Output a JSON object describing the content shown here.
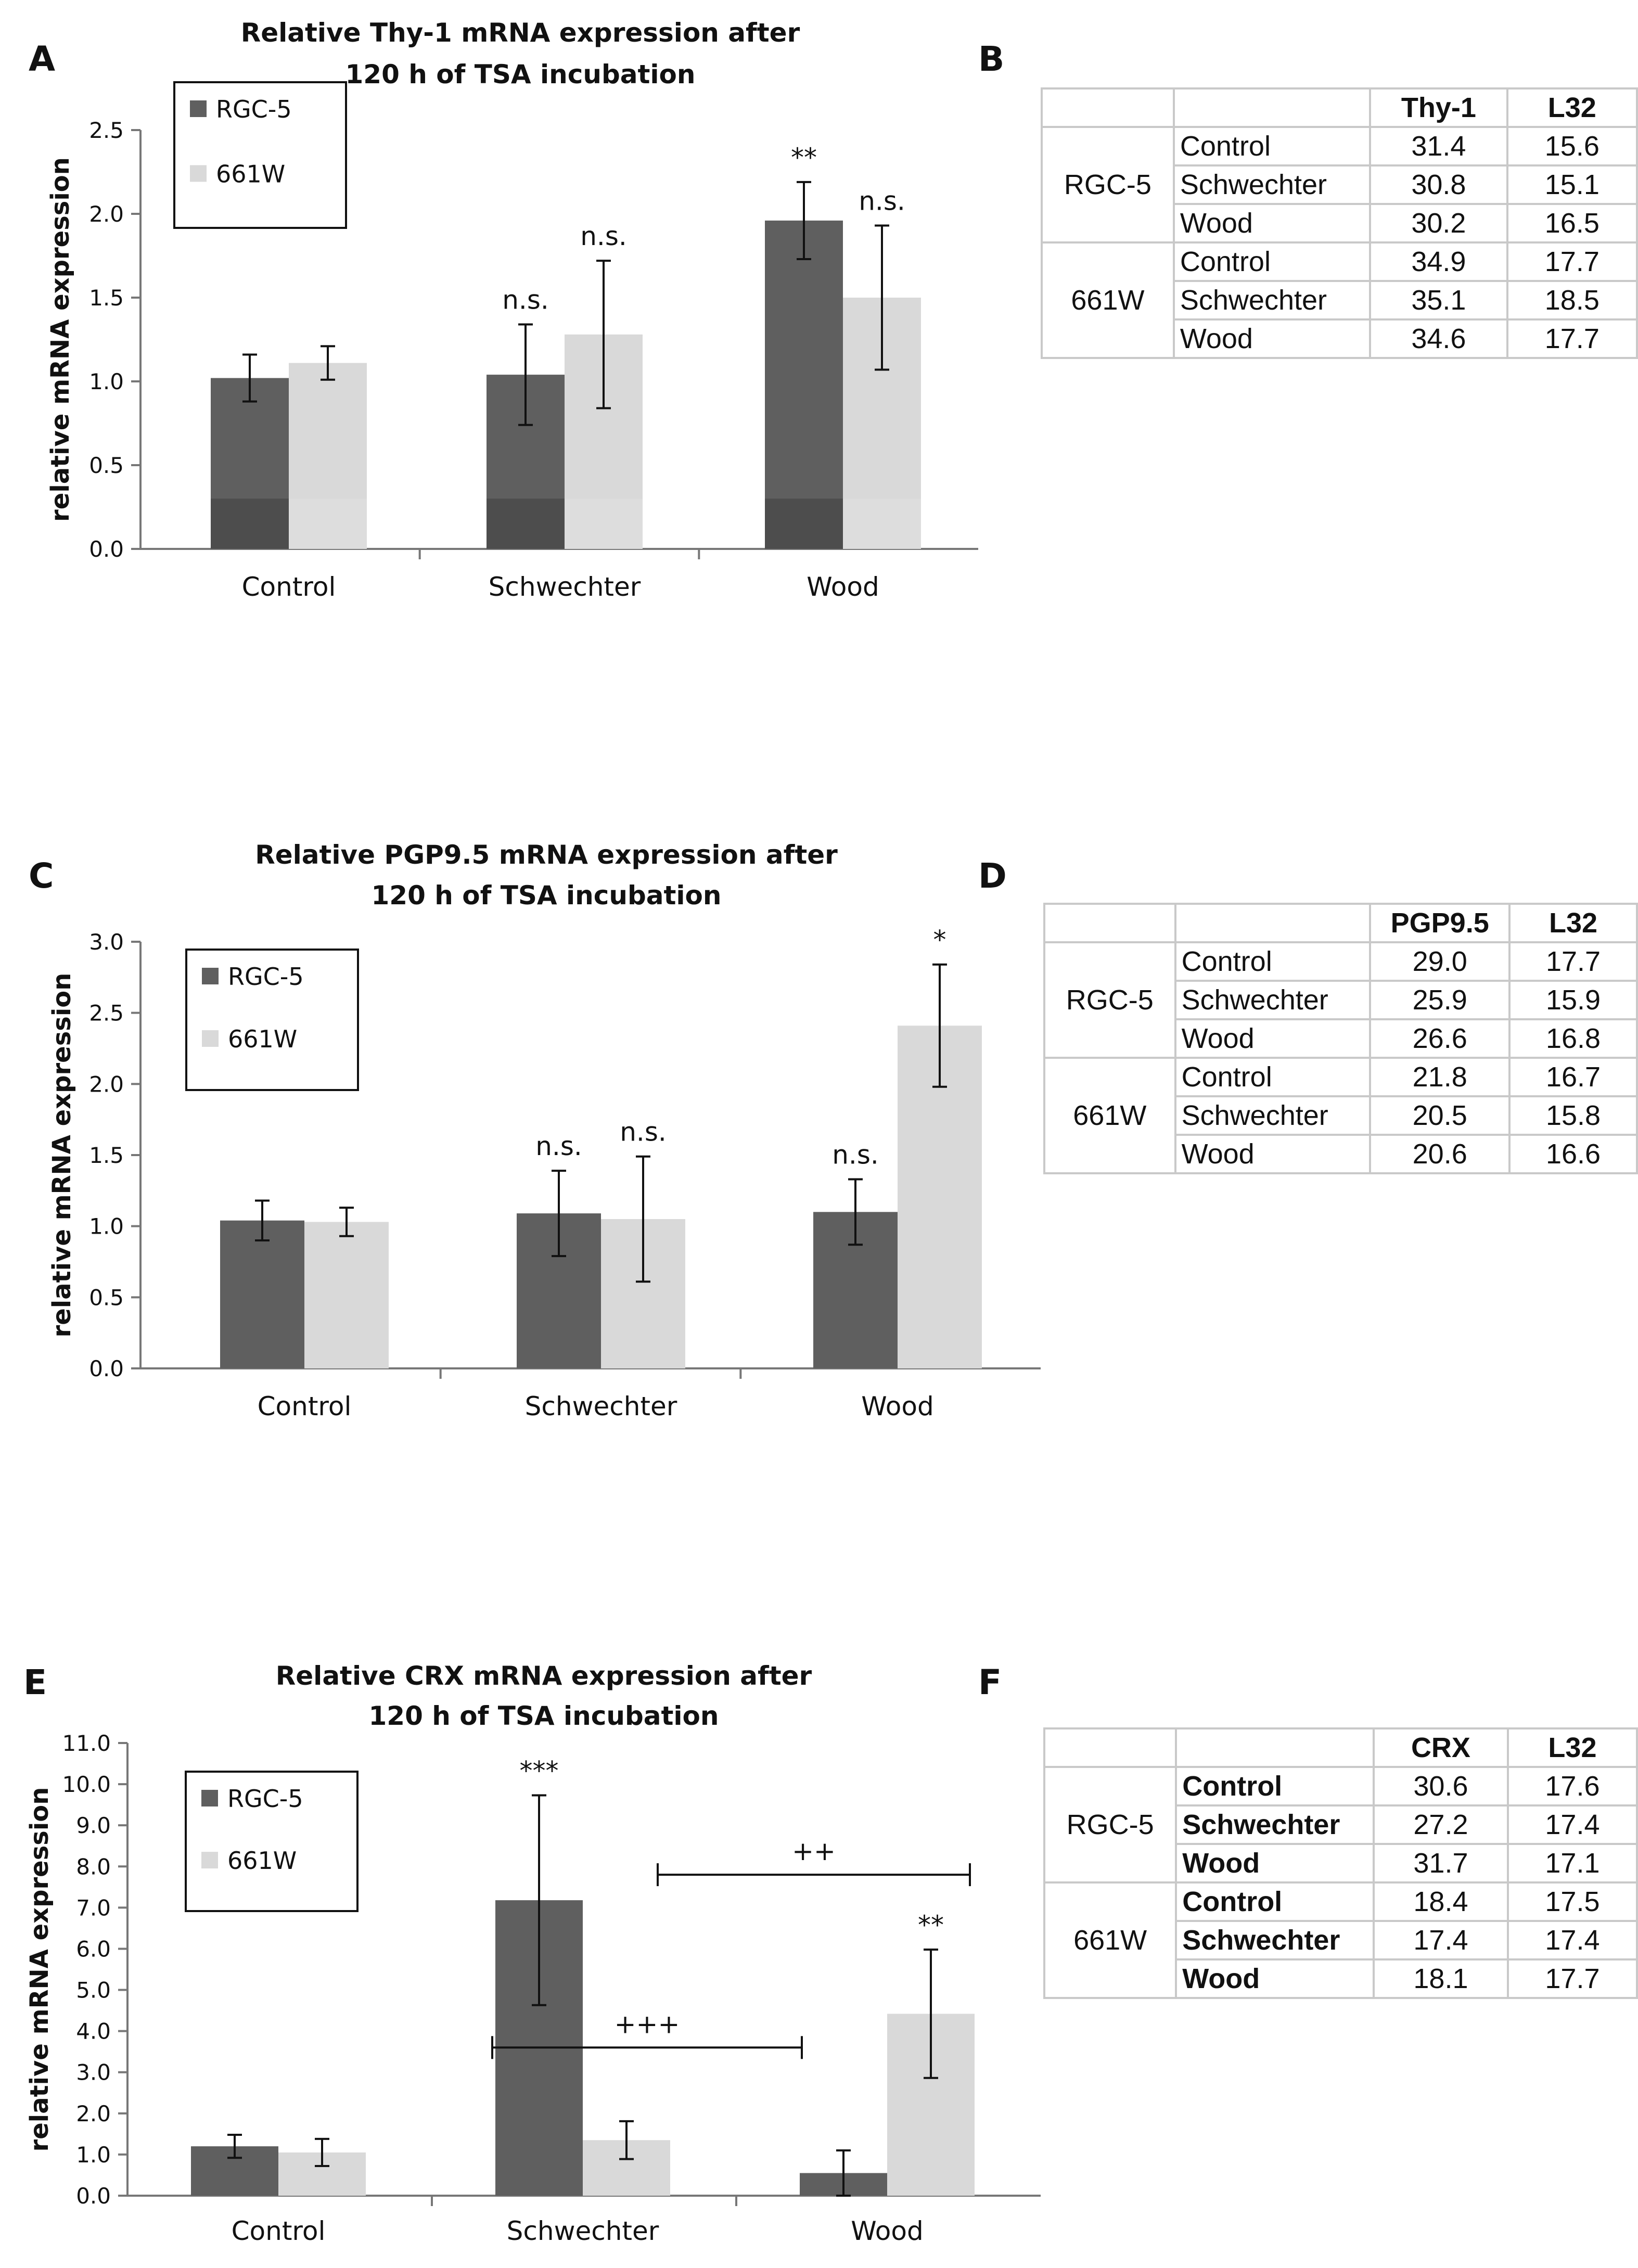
{
  "colors": {
    "rgc5": "#5f5f5f",
    "w661": "#d9d9d9",
    "rgc5_base": "#4d4d4d",
    "w661_base": "#dddddd"
  },
  "series_names": [
    "RGC-5",
    "661W"
  ],
  "chart_data": [
    {
      "letter": "A",
      "type": "bar",
      "title_line1": "Relative Thy-1 mRNA expression after",
      "title_line2": "120 h of TSA incubation",
      "ylabel": "relative mRNA expression",
      "xlabel": "",
      "ylim": [
        0,
        2.5
      ],
      "yticks": [
        0,
        0.5,
        1,
        1.5,
        2,
        2.5
      ],
      "tick_decimals": 1,
      "categories": [
        "Control",
        "Schwechter",
        "Wood"
      ],
      "series": [
        {
          "name": "RGC-5",
          "values": [
            1.02,
            1.04,
            1.96
          ],
          "errors": [
            0.14,
            0.3,
            0.23
          ]
        },
        {
          "name": "661W",
          "values": [
            1.11,
            1.28,
            1.5
          ],
          "errors": [
            0.1,
            0.44,
            0.43
          ]
        }
      ],
      "sig": [
        [
          "",
          "n.s.",
          "**"
        ],
        [
          "",
          "n.s.",
          "n.s."
        ]
      ],
      "brackets": [],
      "legend": "top-left",
      "grid": false
    },
    {
      "letter": "C",
      "type": "bar",
      "title_line1": "Relative PGP9.5 mRNA expression after",
      "title_line2": "120 h of TSA incubation",
      "ylabel": "relative mRNA expression",
      "xlabel": "",
      "ylim": [
        0,
        3.0
      ],
      "yticks": [
        0,
        0.5,
        1,
        1.5,
        2,
        2.5,
        3
      ],
      "tick_decimals": 1,
      "categories": [
        "Control",
        "Schwechter",
        "Wood"
      ],
      "series": [
        {
          "name": "RGC-5",
          "values": [
            1.04,
            1.09,
            1.1
          ],
          "errors": [
            0.14,
            0.3,
            0.23
          ]
        },
        {
          "name": "661W",
          "values": [
            1.03,
            1.05,
            2.41
          ],
          "errors": [
            0.1,
            0.44,
            0.43
          ]
        }
      ],
      "sig": [
        [
          "",
          "n.s.",
          "n.s."
        ],
        [
          "",
          "n.s.",
          "*"
        ]
      ],
      "brackets": [],
      "legend": "top-left",
      "grid": false
    },
    {
      "letter": "E",
      "type": "bar",
      "title_line1": "Relative CRX mRNA expression after",
      "title_line2": "120 h of TSA incubation",
      "ylabel": "relative mRNA expression",
      "xlabel": "",
      "ylim": [
        0,
        11.0
      ],
      "yticks": [
        0,
        1,
        2,
        3,
        4,
        5,
        6,
        7,
        8,
        9,
        10,
        11
      ],
      "tick_decimals": 1,
      "categories": [
        "Control",
        "Schwechter",
        "Wood"
      ],
      "series": [
        {
          "name": "RGC-5",
          "values": [
            1.2,
            7.18,
            0.55
          ],
          "errors": [
            0.28,
            2.55,
            0.55
          ]
        },
        {
          "name": "661W",
          "values": [
            1.05,
            1.35,
            4.42
          ],
          "errors": [
            0.33,
            0.46,
            1.56
          ]
        }
      ],
      "sig": [
        [
          "",
          "***",
          ""
        ],
        [
          "",
          "",
          "**"
        ]
      ],
      "brackets": [
        {
          "label": "++",
          "y": 7.8,
          "from": "Schwechter",
          "to": "Wood"
        },
        {
          "label": "+++",
          "y": 3.6,
          "from": "Schwechter",
          "to": "Wood"
        }
      ],
      "legend": "top-left",
      "grid": false
    }
  ],
  "tables": [
    {
      "letter": "B",
      "columns": [
        "",
        "",
        "Thy-1",
        "L32"
      ],
      "groups": [
        {
          "name": "RGC-5",
          "rows": [
            [
              "Control",
              "31.4",
              "15.6"
            ],
            [
              "Schwechter",
              "30.8",
              "15.1"
            ],
            [
              "Wood",
              "30.2",
              "16.5"
            ]
          ]
        },
        {
          "name": "661W",
          "rows": [
            [
              "Control",
              "34.9",
              "17.7"
            ],
            [
              "Schwechter",
              "35.1",
              "18.5"
            ],
            [
              "Wood",
              "34.6",
              "17.7"
            ]
          ]
        }
      ]
    },
    {
      "letter": "D",
      "columns": [
        "",
        "",
        "PGP9.5",
        "L32"
      ],
      "groups": [
        {
          "name": "RGC-5",
          "rows": [
            [
              "Control",
              "29.0",
              "17.7"
            ],
            [
              "Schwechter",
              "25.9",
              "15.9"
            ],
            [
              "Wood",
              "26.6",
              "16.8"
            ]
          ]
        },
        {
          "name": "661W",
          "rows": [
            [
              "Control",
              "21.8",
              "16.7"
            ],
            [
              "Schwechter",
              "20.5",
              "15.8"
            ],
            [
              "Wood",
              "20.6",
              "16.6"
            ]
          ]
        }
      ]
    },
    {
      "letter": "F",
      "columns": [
        "",
        "",
        "CRX",
        "L32"
      ],
      "groups": [
        {
          "name": "RGC-5",
          "rows": [
            [
              "Control",
              "30.6",
              "17.6"
            ],
            [
              "Schwechter",
              "27.2",
              "17.4"
            ],
            [
              "Wood",
              "31.7",
              "17.1"
            ]
          ]
        },
        {
          "name": "661W",
          "rows": [
            [
              "Control",
              "18.4",
              "17.5"
            ],
            [
              "Schwechter",
              "17.4",
              "17.4"
            ],
            [
              "Wood",
              "18.1",
              "17.7"
            ]
          ]
        }
      ]
    }
  ]
}
